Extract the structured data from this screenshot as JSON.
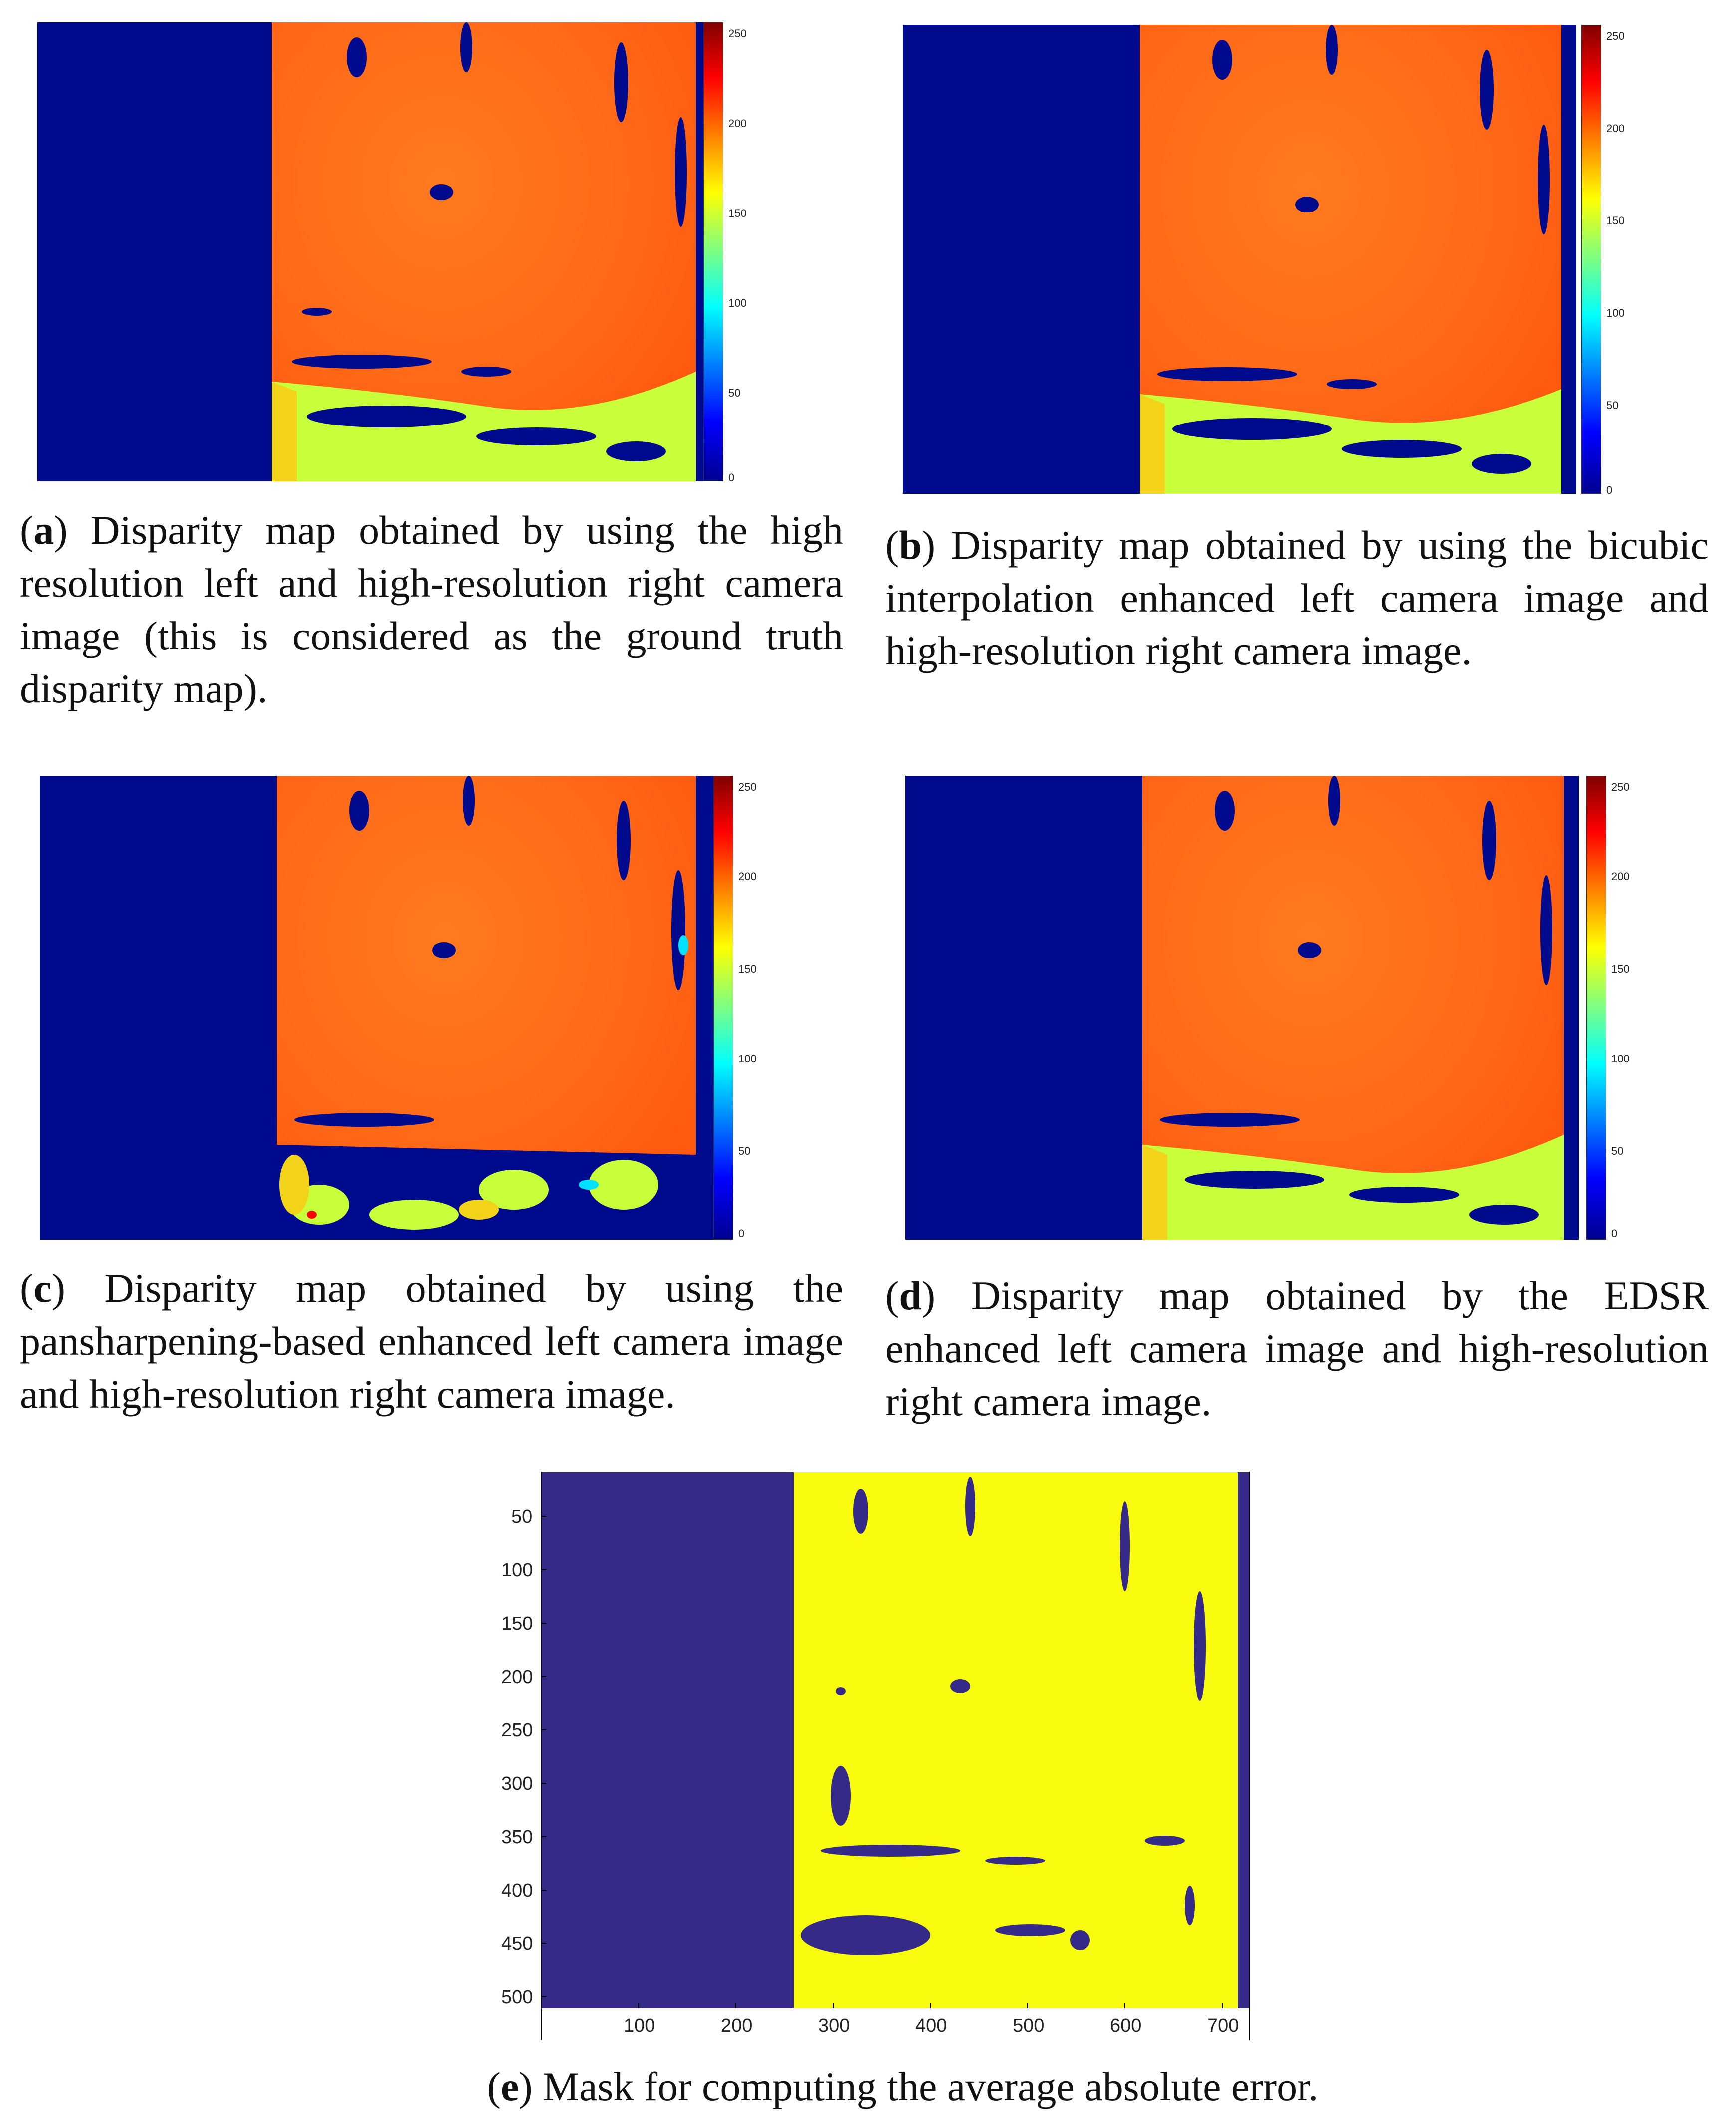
{
  "figure": {
    "panels": [
      {
        "id": "a",
        "letter": "a",
        "caption": "Disparity map obtained by using the high resolution left and high-resolution right camera image (this is considered as the ground truth disparity map)."
      },
      {
        "id": "b",
        "letter": "b",
        "caption": "Disparity map obtained by using the bicubic interpolation enhanced left camera image and high-resolution right camera image."
      },
      {
        "id": "c",
        "letter": "c",
        "caption": "Disparity map obtained by using the pansharpening-based enhanced left camera image and high-resolution right camera image."
      },
      {
        "id": "d",
        "letter": "d",
        "caption": "Disparity map obtained by the EDSR enhanced left camera image and high-resolution right camera image."
      },
      {
        "id": "e",
        "letter": "e",
        "caption": "Mask for computing the average absolute error."
      }
    ],
    "colorbar": {
      "ticks": [
        "250",
        "200",
        "150",
        "100",
        "50",
        "0"
      ],
      "colors": [
        "#800000",
        "#ff0000",
        "#ff8000",
        "#ffff00",
        "#80ff80",
        "#00ffff",
        "#0080ff",
        "#0000ff",
        "#00008f"
      ]
    },
    "mask_axes": {
      "y_ticks": [
        "50",
        "100",
        "150",
        "200",
        "250",
        "300",
        "350",
        "400",
        "450",
        "500"
      ],
      "x_ticks": [
        "100",
        "200",
        "300",
        "400",
        "500",
        "600",
        "700"
      ]
    },
    "colors": {
      "background_blue": "#000a8c",
      "disparity_orange": "#ff6a1a",
      "near_field_green": "#c8ff3a",
      "mask_blue": "#352a87",
      "mask_yellow": "#f9fb0e"
    }
  }
}
